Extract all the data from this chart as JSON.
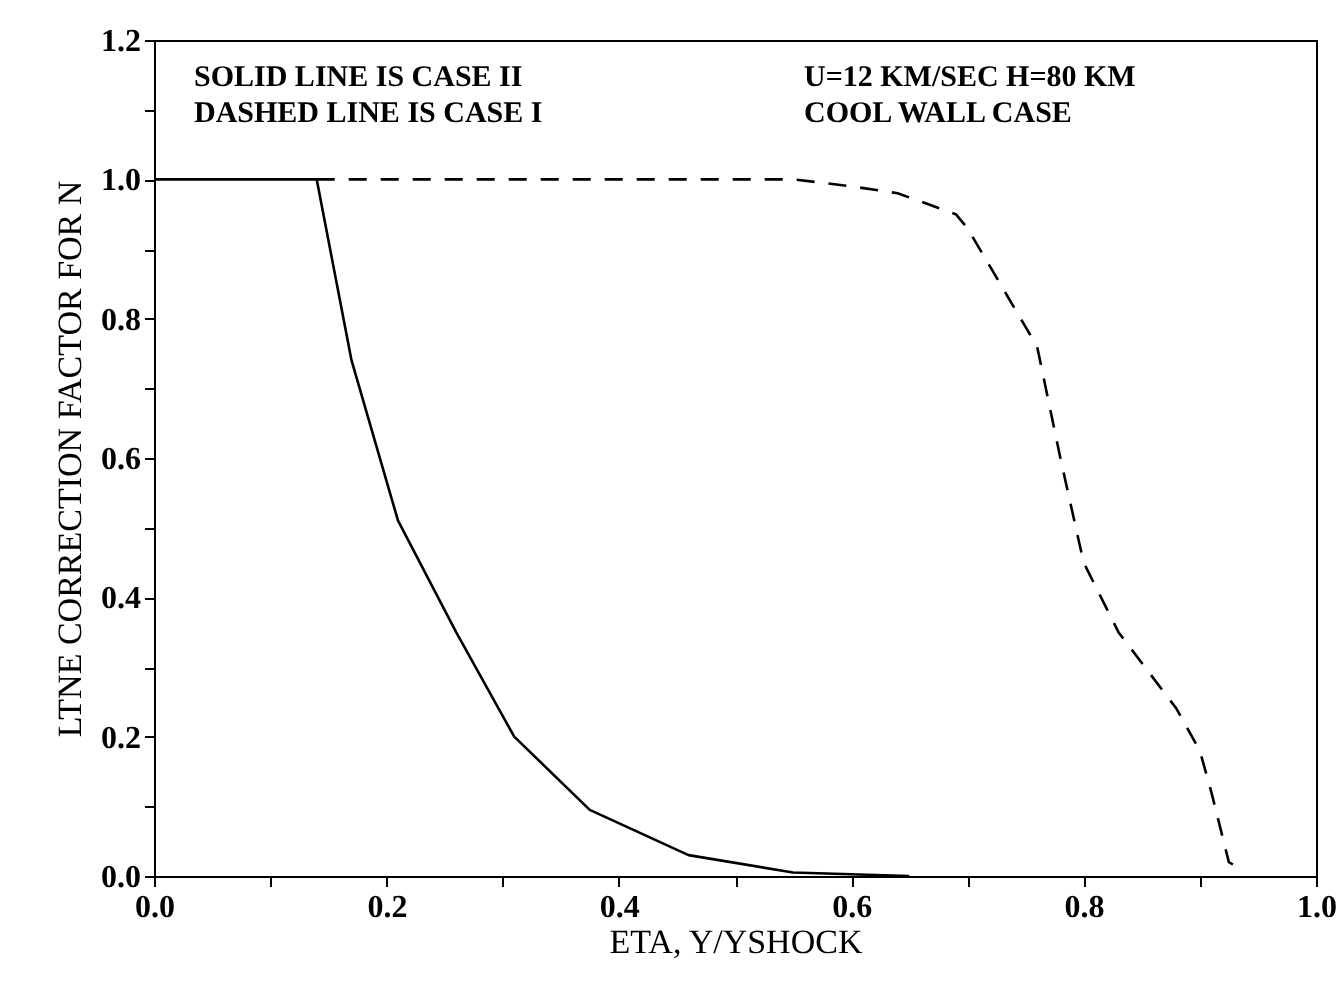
{
  "chart_data": {
    "type": "line",
    "xlabel": "ETA, Y/YSHOCK",
    "ylabel": "LTNE CORRECTION FACTOR FOR N",
    "annotations": [
      "SOLID LINE IS CASE II",
      "DASHED LINE IS CASE I",
      "U=12 KM/SEC   H=80 KM",
      "COOL WALL CASE"
    ],
    "xlim": [
      0,
      1
    ],
    "ylim": [
      0,
      1.2
    ],
    "xticks": [
      {
        "value": 0,
        "label": "0.0"
      },
      {
        "value": 0.1,
        "label": null
      },
      0.2,
      {
        "value": 0.3,
        "label": null
      },
      0.4,
      {
        "value": 0.5,
        "label": null
      },
      0.6,
      {
        "value": 0.7,
        "label": null
      },
      0.8,
      {
        "value": 0.9,
        "label": null
      },
      {
        "value": 1,
        "label": "1.0"
      }
    ],
    "yticks": [
      {
        "value": 0,
        "label": "0.0"
      },
      {
        "value": 0.1,
        "label": null
      },
      0.2,
      {
        "value": 0.3,
        "label": null
      },
      0.4,
      {
        "value": 0.5,
        "label": null
      },
      0.6,
      {
        "value": 0.7,
        "label": null
      },
      0.8,
      {
        "value": 0.9,
        "label": null
      },
      {
        "value": 1,
        "label": "1.0"
      },
      {
        "value": 1.1,
        "label": null
      },
      1.2
    ],
    "grid": false,
    "marker": "none",
    "series": [
      {
        "color": "#000000",
        "line_style": "solid",
        "x": [
          0,
          0.14,
          0.17,
          0.21,
          0.26,
          0.31,
          0.375,
          0.46,
          0.55,
          0.65
        ],
        "values": [
          1,
          1,
          0.74,
          0.51,
          0.35,
          0.2,
          0.095,
          0.03,
          0.005,
          0
        ]
      },
      {
        "color": "#000000",
        "line_style": "dashed",
        "x": [
          0.14,
          0.55,
          0.6,
          0.64,
          0.69,
          0.7,
          0.76,
          0.78,
          0.8,
          0.83,
          0.88,
          0.9,
          0.91,
          0.925,
          0.93
        ],
        "values": [
          1,
          1,
          0.99,
          0.98,
          0.95,
          0.93,
          0.76,
          0.6,
          0.45,
          0.35,
          0.24,
          0.18,
          0.12,
          0.02,
          0.015
        ]
      }
    ]
  }
}
